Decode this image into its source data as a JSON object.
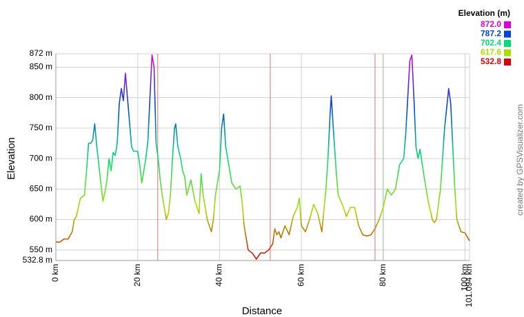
{
  "chart_data": {
    "type": "line",
    "x_label": "Distance",
    "y_label": "Elevation",
    "credit": "created by GPSVisualizer.com",
    "legend": {
      "title": "Elevation (m)",
      "entries": [
        {
          "value": {
            "value": 872.0,
            "label": "872.0"
          },
          "color": "#dd00dd"
        },
        {
          "value": {
            "value": 787.2,
            "label": "787.2"
          },
          "color": "#0044dd"
        },
        {
          "value": {
            "value": 702.4,
            "label": "702.4"
          },
          "color": "#00dd77"
        },
        {
          "value": {
            "value": 617.6,
            "label": "617.6"
          },
          "color": "#aadd00"
        },
        {
          "value": {
            "value": 532.8,
            "label": "532.8"
          },
          "color": "#dd0000"
        }
      ]
    },
    "x": [
      0,
      1,
      2,
      3,
      4,
      4.5,
      5,
      6,
      7,
      7.5,
      8,
      8.5,
      9,
      9.5,
      10,
      10.5,
      11,
      11.5,
      12,
      12.5,
      13,
      13.5,
      14,
      14.5,
      15,
      15.5,
      16,
      16.5,
      17,
      17.5,
      18,
      18.5,
      19,
      20,
      20.5,
      21,
      21.5,
      22,
      22.5,
      23,
      23.5,
      24,
      24.5,
      25,
      25.5,
      26,
      27,
      27.5,
      28,
      28.5,
      29,
      29.3,
      29.8,
      30.5,
      31,
      31.5,
      32,
      33,
      34,
      35,
      35.5,
      36,
      37,
      38,
      38.5,
      39,
      40,
      40.5,
      41,
      41.5,
      42,
      42.5,
      43,
      44,
      45,
      45.5,
      46,
      47,
      48,
      49,
      50,
      51,
      52,
      53,
      53.5,
      54,
      54.5,
      55,
      56,
      57,
      58,
      59,
      59.5,
      60,
      61,
      62,
      63,
      64,
      65,
      66,
      66.5,
      67,
      67.3,
      67.8,
      68.5,
      69,
      70,
      71,
      72,
      73,
      74,
      75,
      76,
      77,
      78,
      79,
      80,
      81,
      82,
      83,
      84,
      85,
      85.5,
      86,
      86.5,
      87,
      87.5,
      88,
      88.5,
      89,
      90,
      91,
      92,
      92.5,
      93,
      94,
      95,
      96,
      96.5,
      97,
      97.5,
      98,
      99,
      100,
      101.094
    ],
    "series": [
      {
        "name": "Elevation",
        "values": [
          563,
          563,
          568,
          568,
          580,
          600,
          605,
          635,
          640,
          680,
          725,
          725,
          730,
          757,
          720,
          690,
          660,
          630,
          645,
          665,
          700,
          680,
          710,
          705,
          725,
          790,
          815,
          795,
          840,
          800,
          760,
          720,
          712,
          712,
          690,
          660,
          680,
          700,
          730,
          800,
          870,
          850,
          725,
          700,
          665,
          640,
          600,
          610,
          640,
          700,
          750,
          757,
          720,
          700,
          680,
          670,
          640,
          665,
          630,
          610,
          675,
          640,
          600,
          580,
          600,
          640,
          680,
          750,
          773,
          720,
          700,
          680,
          660,
          650,
          655,
          630,
          590,
          550,
          545,
          535,
          545,
          545,
          550,
          560,
          585,
          575,
          580,
          570,
          590,
          575,
          605,
          620,
          635,
          590,
          580,
          600,
          625,
          610,
          580,
          650,
          700,
          770,
          803,
          750,
          680,
          640,
          625,
          605,
          620,
          620,
          590,
          575,
          573,
          575,
          585,
          600,
          620,
          650,
          640,
          650,
          690,
          700,
          740,
          800,
          860,
          870,
          800,
          720,
          700,
          715,
          670,
          630,
          600,
          595,
          600,
          650,
          750,
          815,
          790,
          720,
          650,
          600,
          580,
          578,
          565
        ]
      }
    ],
    "markers": [
      {
        "x": 24.9,
        "color": "#e07070"
      },
      {
        "x": 52.4,
        "color": "#e07070"
      },
      {
        "x": 78.0,
        "color": "#e07070"
      },
      {
        "x": 80.0,
        "color": "#90d090"
      }
    ],
    "xlim": [
      0,
      101.094
    ],
    "xticks": [
      {
        "value": 0,
        "label": "0 km"
      },
      {
        "value": 20,
        "label": "20 km"
      },
      {
        "value": 40,
        "label": "40 km"
      },
      {
        "value": 60,
        "label": "60 km"
      },
      {
        "value": 80,
        "label": "80 km"
      },
      {
        "value": 100,
        "label": "100 km"
      },
      {
        "value": 101.094,
        "label": "101.094 km"
      }
    ],
    "ylim": [
      532.8,
      872
    ],
    "yticks": [
      {
        "value": 532.8,
        "label": "532.8 m"
      },
      {
        "value": 550,
        "label": "550 m"
      },
      {
        "value": 600,
        "label": "600 m"
      },
      {
        "value": 650,
        "label": "650 m"
      },
      {
        "value": 700,
        "label": "700 m"
      },
      {
        "value": 750,
        "label": "750 m"
      },
      {
        "value": 800,
        "label": "800 m"
      },
      {
        "value": 850,
        "label": "850 m"
      },
      {
        "value": 872,
        "label": "872 m"
      }
    ],
    "grid": true
  }
}
